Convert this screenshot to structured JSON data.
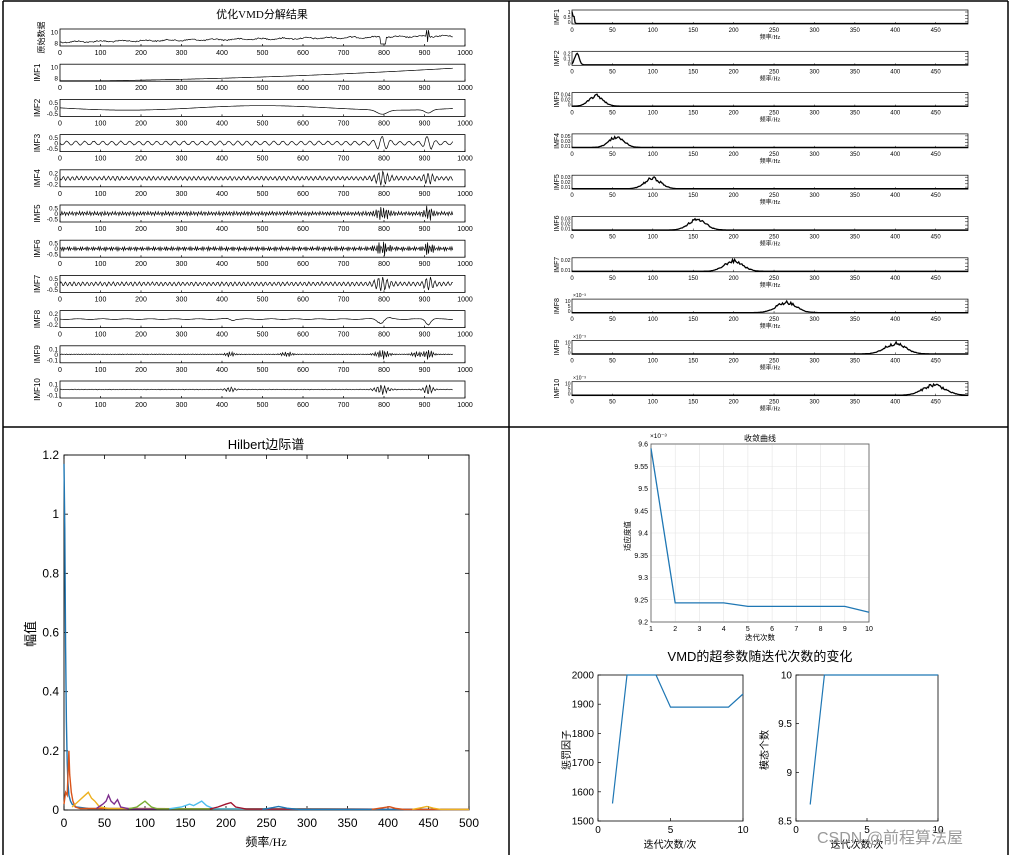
{
  "panel_labels": {
    "spectrum_ylabels": [
      "IMF1",
      "IMF2",
      "IMF3",
      "IMF4",
      "IMF5",
      "IMF6",
      "IMF7",
      "IMF8",
      "IMF9",
      "IMF10"
    ],
    "spectrum_xlabel": "频率/Hz"
  },
  "watermark": "CSDN @前程算法屋",
  "colors": {
    "axis": "#000000",
    "trace": "#000000",
    "series_blue": "#1f77b4",
    "series_orange": "#d95319",
    "series_yellow": "#edb120",
    "series_purple": "#7e2f8e",
    "series_green": "#77ac30",
    "series_cyan": "#4dbeee",
    "series_red": "#a2142f"
  },
  "chart_data": [
    {
      "id": "decomp",
      "type": "line",
      "title": "优化VMD分解结果",
      "xlim": [
        0,
        1000
      ],
      "xticks": [
        0,
        100,
        200,
        300,
        400,
        500,
        600,
        700,
        800,
        900,
        1000
      ],
      "rows": [
        {
          "label": "原始数据",
          "yticks": [
            "10",
            "8"
          ]
        },
        {
          "label": "IMF1",
          "yticks": [
            "10",
            "8"
          ]
        },
        {
          "label": "IMF2",
          "yticks": [
            "0.5",
            "0",
            "-0.5"
          ]
        },
        {
          "label": "IMF3",
          "yticks": [
            "0.5",
            "0",
            "-0.5"
          ]
        },
        {
          "label": "IMF4",
          "yticks": [
            "0.2",
            "0",
            "-0.2"
          ]
        },
        {
          "label": "IMF5",
          "yticks": [
            "0.5",
            "0",
            "-0.5"
          ]
        },
        {
          "label": "IMF6",
          "yticks": [
            "0.5",
            "0",
            "-0.5"
          ]
        },
        {
          "label": "IMF7",
          "yticks": [
            "0.5",
            "0",
            "-0.5"
          ]
        },
        {
          "label": "IMF8",
          "yticks": [
            "0.2",
            "0",
            "-0.2"
          ]
        },
        {
          "label": "IMF9",
          "yticks": [
            "0.1",
            "0",
            "-0.1"
          ]
        },
        {
          "label": "IMF10",
          "yticks": [
            "0.1",
            "0",
            "-0.1"
          ]
        }
      ]
    },
    {
      "id": "spectra",
      "type": "line",
      "xlim": [
        0,
        490
      ],
      "xticks": [
        0,
        50,
        100,
        150,
        200,
        250,
        300,
        350,
        400,
        450
      ],
      "xlabel": "频率/Hz",
      "rows": [
        {
          "label": "IMF1",
          "yticks": [
            "1",
            "0.5",
            "0"
          ],
          "exponent": "",
          "peak_hz": 2
        },
        {
          "label": "IMF2",
          "yticks": [
            "0.2",
            "0.1",
            "0"
          ],
          "exponent": "",
          "peak_hz": 6
        },
        {
          "label": "IMF3",
          "yticks": [
            "0.04",
            "0.02",
            "0"
          ],
          "exponent": "",
          "peak_hz": 30
        },
        {
          "label": "IMF4",
          "yticks": [
            "0.05",
            "0.03",
            "0.01"
          ],
          "exponent": "",
          "peak_hz": 55
        },
        {
          "label": "IMF5",
          "yticks": [
            "0.03",
            "0.02",
            "0.01"
          ],
          "exponent": "",
          "peak_hz": 100
        },
        {
          "label": "IMF6",
          "yticks": [
            "0.03",
            "0.02",
            "0.01"
          ],
          "exponent": "",
          "peak_hz": 155
        },
        {
          "label": "IMF7",
          "yticks": [
            "0.02",
            "0.01"
          ],
          "exponent": "",
          "peak_hz": 200
        },
        {
          "label": "IMF8",
          "yticks": [
            "10",
            "5",
            "0"
          ],
          "exponent": "×10⁻³",
          "peak_hz": 265
        },
        {
          "label": "IMF9",
          "yticks": [
            "10",
            "5",
            "0"
          ],
          "exponent": "×10⁻³",
          "peak_hz": 400
        },
        {
          "label": "IMF10",
          "yticks": [
            "10",
            "5",
            "0"
          ],
          "exponent": "×10⁻³",
          "peak_hz": 448
        }
      ]
    },
    {
      "id": "hilbert",
      "type": "line",
      "title": "Hilbert边际谱",
      "xlabel": "频率/Hz",
      "ylabel": "幅值",
      "xlim": [
        0,
        500
      ],
      "ylim": [
        0,
        1.2
      ],
      "xticks": [
        0,
        50,
        100,
        150,
        200,
        250,
        300,
        350,
        400,
        450,
        500
      ],
      "yticks": [
        0,
        0.2,
        0.4,
        0.6,
        0.8,
        1,
        1.2
      ],
      "ytick_labels": [
        "0",
        "0.2",
        "0.4",
        "0.6",
        "0.8",
        "1",
        "1.2"
      ],
      "series": [
        {
          "name": "IMF1",
          "color": "#1f77b4",
          "points": [
            [
              0,
              1.17
            ],
            [
              1,
              0.95
            ],
            [
              2,
              0.55
            ],
            [
              3,
              0.3
            ],
            [
              4,
              0.16
            ],
            [
              5,
              0.09
            ],
            [
              6,
              0.05
            ],
            [
              8,
              0.03
            ],
            [
              10,
              0.02
            ],
            [
              15,
              0.01
            ],
            [
              30,
              0.005
            ],
            [
              500,
              0.002
            ]
          ]
        },
        {
          "name": "IMF2",
          "color": "#d95319",
          "points": [
            [
              0,
              0.02
            ],
            [
              2,
              0.06
            ],
            [
              4,
              0.05
            ],
            [
              5,
              0.12
            ],
            [
              6,
              0.2
            ],
            [
              7,
              0.12
            ],
            [
              9,
              0.06
            ],
            [
              11,
              0.03
            ],
            [
              14,
              0.01
            ],
            [
              20,
              0.005
            ],
            [
              500,
              0.002
            ]
          ]
        },
        {
          "name": "IMF3",
          "color": "#edb120",
          "points": [
            [
              10,
              0.01
            ],
            [
              18,
              0.03
            ],
            [
              22,
              0.04
            ],
            [
              26,
              0.05
            ],
            [
              30,
              0.06
            ],
            [
              34,
              0.04
            ],
            [
              38,
              0.03
            ],
            [
              44,
              0.01
            ],
            [
              55,
              0.005
            ],
            [
              500,
              0.002
            ]
          ]
        },
        {
          "name": "IMF4",
          "color": "#7e2f8e",
          "points": [
            [
              40,
              0.005
            ],
            [
              48,
              0.02
            ],
            [
              52,
              0.03
            ],
            [
              55,
              0.05
            ],
            [
              58,
              0.03
            ],
            [
              62,
              0.02
            ],
            [
              66,
              0.035
            ],
            [
              70,
              0.01
            ],
            [
              80,
              0.004
            ],
            [
              500,
              0.002
            ]
          ]
        },
        {
          "name": "IMF5",
          "color": "#77ac30",
          "points": [
            [
              80,
              0.004
            ],
            [
              90,
              0.01
            ],
            [
              95,
              0.02
            ],
            [
              100,
              0.03
            ],
            [
              104,
              0.02
            ],
            [
              108,
              0.01
            ],
            [
              115,
              0.004
            ],
            [
              500,
              0.002
            ]
          ]
        },
        {
          "name": "IMF6",
          "color": "#4dbeee",
          "points": [
            [
              130,
              0.004
            ],
            [
              145,
              0.01
            ],
            [
              155,
              0.02
            ],
            [
              160,
              0.015
            ],
            [
              170,
              0.03
            ],
            [
              176,
              0.015
            ],
            [
              185,
              0.004
            ],
            [
              500,
              0.002
            ]
          ]
        },
        {
          "name": "IMF7",
          "color": "#a2142f",
          "points": [
            [
              180,
              0.003
            ],
            [
              190,
              0.01
            ],
            [
              200,
              0.02
            ],
            [
              206,
              0.025
            ],
            [
              212,
              0.01
            ],
            [
              225,
              0.003
            ],
            [
              500,
              0.002
            ]
          ]
        },
        {
          "name": "IMF8",
          "color": "#1f77b4",
          "points": [
            [
              245,
              0.002
            ],
            [
              258,
              0.008
            ],
            [
              265,
              0.012
            ],
            [
              275,
              0.006
            ],
            [
              290,
              0.002
            ],
            [
              500,
              0.002
            ]
          ]
        },
        {
          "name": "IMF9",
          "color": "#d95319",
          "points": [
            [
              380,
              0.002
            ],
            [
              395,
              0.008
            ],
            [
              402,
              0.011
            ],
            [
              410,
              0.005
            ],
            [
              420,
              0.002
            ],
            [
              500,
              0.002
            ]
          ]
        },
        {
          "name": "IMF10",
          "color": "#edb120",
          "points": [
            [
              430,
              0.002
            ],
            [
              442,
              0.008
            ],
            [
              448,
              0.012
            ],
            [
              456,
              0.006
            ],
            [
              465,
              0.002
            ],
            [
              500,
              0.002
            ]
          ]
        }
      ]
    },
    {
      "id": "convergence",
      "type": "line",
      "title": "收敛曲线",
      "xlabel": "迭代次数",
      "ylabel": "适应度值",
      "exponent": "×10⁻³",
      "xlim": [
        1,
        10
      ],
      "ylim": [
        9.2,
        9.6
      ],
      "xticks": [
        1,
        2,
        3,
        4,
        5,
        6,
        7,
        8,
        9,
        10
      ],
      "yticks": [
        9.2,
        9.25,
        9.3,
        9.35,
        9.4,
        9.45,
        9.5,
        9.55,
        9.6
      ],
      "ytick_labels": [
        "9.2",
        "9.25",
        "9.3",
        "9.35",
        "9.4",
        "9.45",
        "9.5",
        "9.55",
        "9.6"
      ],
      "x": [
        1,
        2,
        3,
        4,
        5,
        6,
        7,
        8,
        9,
        10
      ],
      "values": [
        9.59,
        9.243,
        9.243,
        9.243,
        9.235,
        9.235,
        9.235,
        9.235,
        9.235,
        9.222
      ]
    },
    {
      "id": "alpha",
      "type": "line",
      "suptitle": "VMD的超参数随迭代次数的变化",
      "xlabel": "迭代次数/次",
      "ylabel": "惩罚因子",
      "xlim": [
        0,
        10
      ],
      "ylim": [
        1500,
        2000
      ],
      "xticks": [
        0,
        5,
        10
      ],
      "yticks": [
        1500,
        1600,
        1700,
        1800,
        1900,
        2000
      ],
      "ytick_labels": [
        "1500",
        "1600",
        "1700",
        "1800",
        "1900",
        "2000"
      ],
      "x": [
        1,
        2,
        3,
        4,
        5,
        6,
        7,
        8,
        9,
        10
      ],
      "values": [
        1560,
        2000,
        2000,
        2000,
        1890,
        1890,
        1890,
        1890,
        1890,
        1935
      ]
    },
    {
      "id": "k",
      "type": "line",
      "xlabel": "迭代次数/次",
      "ylabel": "模态个数",
      "xlim": [
        0,
        10
      ],
      "ylim": [
        8.5,
        10
      ],
      "xticks": [
        0,
        5,
        10
      ],
      "yticks": [
        8.5,
        9,
        9.5,
        10
      ],
      "ytick_labels": [
        "8.5",
        "9",
        "9.5",
        "10"
      ],
      "x": [
        1,
        2,
        3,
        4,
        5,
        6,
        7,
        8,
        9,
        10
      ],
      "values": [
        8.67,
        10,
        10,
        10,
        10,
        10,
        10,
        10,
        10,
        10
      ]
    }
  ]
}
